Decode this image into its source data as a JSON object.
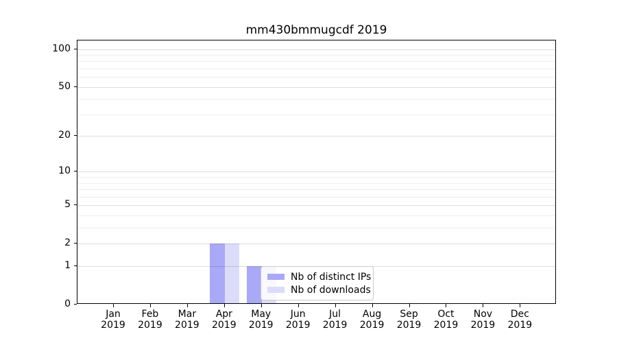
{
  "chart_data": {
    "type": "bar",
    "title": "mm430bmmugcdf 2019",
    "categories": [
      "Jan",
      "Feb",
      "Mar",
      "Apr",
      "May",
      "Jun",
      "Jul",
      "Aug",
      "Sep",
      "Oct",
      "Nov",
      "Dec"
    ],
    "tick_year": "2019",
    "series": [
      {
        "name": "Nb of distinct IPs",
        "color": "#a9a9f7",
        "values": [
          0,
          0,
          0,
          2,
          1,
          0,
          0,
          0,
          0,
          0,
          0,
          0
        ]
      },
      {
        "name": "Nb of downloads",
        "color": "#dcdcfa",
        "values": [
          0,
          0,
          0,
          2,
          1,
          0,
          0,
          0,
          0,
          0,
          0,
          0
        ]
      }
    ],
    "xlabel": "",
    "ylabel": "",
    "y_scale": "log1p",
    "ylim": [
      0,
      117
    ],
    "y_ticks_labeled": [
      0,
      1,
      2,
      5,
      10,
      20,
      50,
      100
    ],
    "y_grid_major": [
      1,
      2,
      5,
      10,
      20,
      50,
      100
    ],
    "y_grid_minor": [
      3,
      4,
      6,
      7,
      8,
      9,
      30,
      40,
      60,
      70,
      80,
      90
    ],
    "grid": "on",
    "legend_position": "lower center",
    "colors": {
      "grid_major": "#d9d9d9",
      "grid_minor": "#ededed",
      "spine": "#000000",
      "background": "#ffffff"
    }
  }
}
